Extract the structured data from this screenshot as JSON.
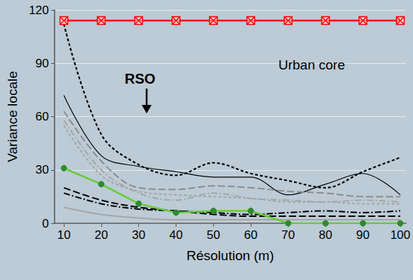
{
  "chart_data": {
    "type": "line",
    "x_label": "Résolution (m)",
    "y_label": "Variance locale",
    "annotations": [
      "RSO",
      "Urban core"
    ],
    "x": [
      10,
      20,
      30,
      40,
      50,
      60,
      70,
      80,
      90,
      100
    ],
    "xlim": [
      7.5,
      101.5
    ],
    "xticks": [
      10,
      20,
      30,
      40,
      50,
      60,
      70,
      80,
      90,
      100
    ],
    "ylim": [
      0,
      120
    ],
    "yticks": [
      0,
      30,
      60,
      90,
      120
    ],
    "grid": true,
    "series": [
      {
        "color": "#ff0000",
        "line_style": "solid",
        "marker": "boxed_x",
        "values": [
          114,
          114,
          114,
          114,
          114,
          114,
          114,
          114,
          114,
          114
        ]
      },
      {
        "color": "#000000",
        "line_style": "dotted",
        "marker": "none",
        "values": [
          112,
          50,
          33,
          27,
          34,
          28,
          24,
          20,
          29,
          37
        ]
      },
      {
        "color": "#000000",
        "line_style": "solid",
        "marker": "none",
        "values": [
          72,
          38,
          32,
          29,
          26,
          26,
          16,
          22,
          28,
          16
        ]
      },
      {
        "color": "#8c8c8c",
        "line_style": "dashed",
        "marker": "none",
        "values": [
          63,
          35,
          20,
          19,
          21,
          20,
          18,
          17,
          15,
          15
        ]
      },
      {
        "color": "#a6a6a6",
        "line_style": "dashdot",
        "marker": "none",
        "values": [
          58,
          30,
          17,
          13,
          17,
          14,
          13,
          12,
          13,
          12
        ]
      },
      {
        "color": "#a6a6a6",
        "line_style": "dotted",
        "marker": "none",
        "values": [
          55,
          27,
          18,
          16,
          15,
          14,
          12,
          12,
          11,
          11
        ]
      },
      {
        "color": "#000000",
        "line_style": "dashed",
        "marker": "none",
        "values": [
          20,
          13,
          9,
          7,
          5,
          4,
          4,
          4,
          4,
          4
        ]
      },
      {
        "color": "#000000",
        "line_style": "dashdot",
        "marker": "none",
        "values": [
          17,
          11,
          8,
          7,
          6,
          5,
          6,
          7,
          6,
          7
        ]
      },
      {
        "color": "#a6a6a6",
        "line_style": "solid",
        "marker": "none",
        "values": [
          9,
          5,
          3,
          2,
          2,
          2,
          2,
          2,
          2,
          2
        ]
      },
      {
        "color": "#66cc33",
        "line_style": "solid",
        "marker": "circle",
        "values": [
          31,
          22,
          11,
          6,
          7,
          7,
          0,
          0,
          0,
          0
        ]
      }
    ]
  }
}
